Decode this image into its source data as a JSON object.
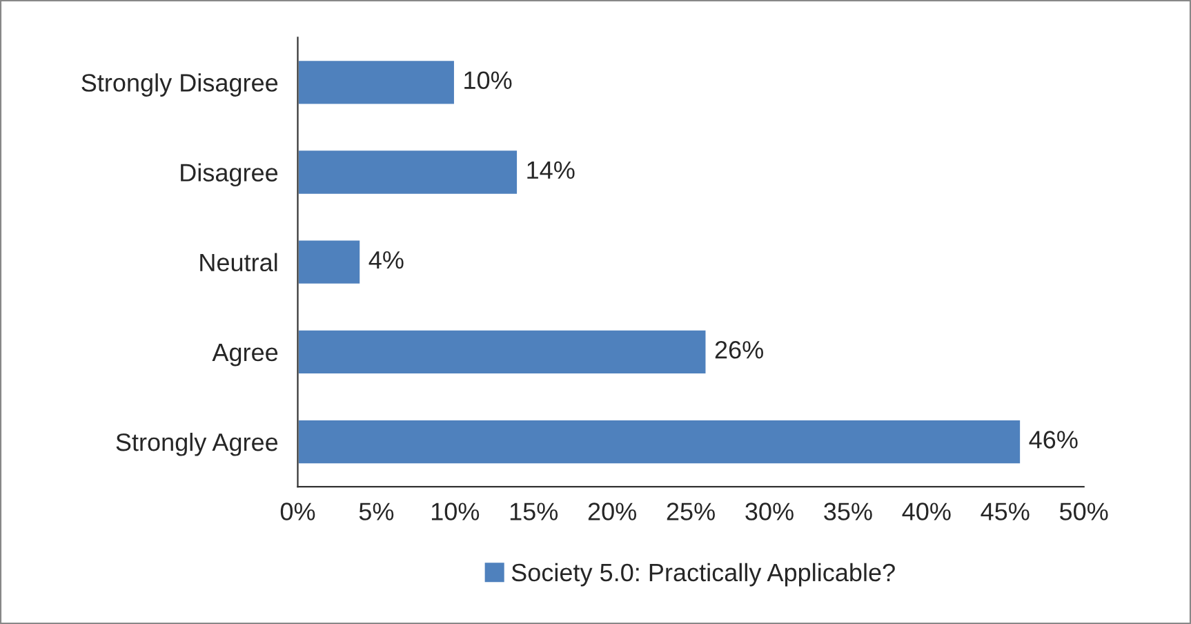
{
  "chart_data": {
    "type": "bar",
    "orientation": "horizontal",
    "categories": [
      "Strongly Disagree",
      "Disagree",
      "Neutral",
      "Agree",
      "Strongly Agree"
    ],
    "series": [
      {
        "name": "Society 5.0: Practically Applicable?",
        "color": "#4f81bd",
        "values": [
          10,
          14,
          4,
          26,
          46
        ]
      }
    ],
    "value_labels": [
      "10%",
      "14%",
      "4%",
      "26%",
      "46%"
    ],
    "xlim": [
      0,
      50
    ],
    "xticks": [
      {
        "value": 0,
        "label": "0%"
      },
      {
        "value": 5,
        "label": "5%"
      },
      {
        "value": 10,
        "label": "10%"
      },
      {
        "value": 15,
        "label": "15%"
      },
      {
        "value": 20,
        "label": "20%"
      },
      {
        "value": 25,
        "label": "25%"
      },
      {
        "value": 30,
        "label": "30%"
      },
      {
        "value": 35,
        "label": "35%"
      },
      {
        "value": 40,
        "label": "40%"
      },
      {
        "value": 45,
        "label": "45%"
      },
      {
        "value": 50,
        "label": "50%"
      }
    ],
    "grid": false,
    "legend": "bottom"
  }
}
